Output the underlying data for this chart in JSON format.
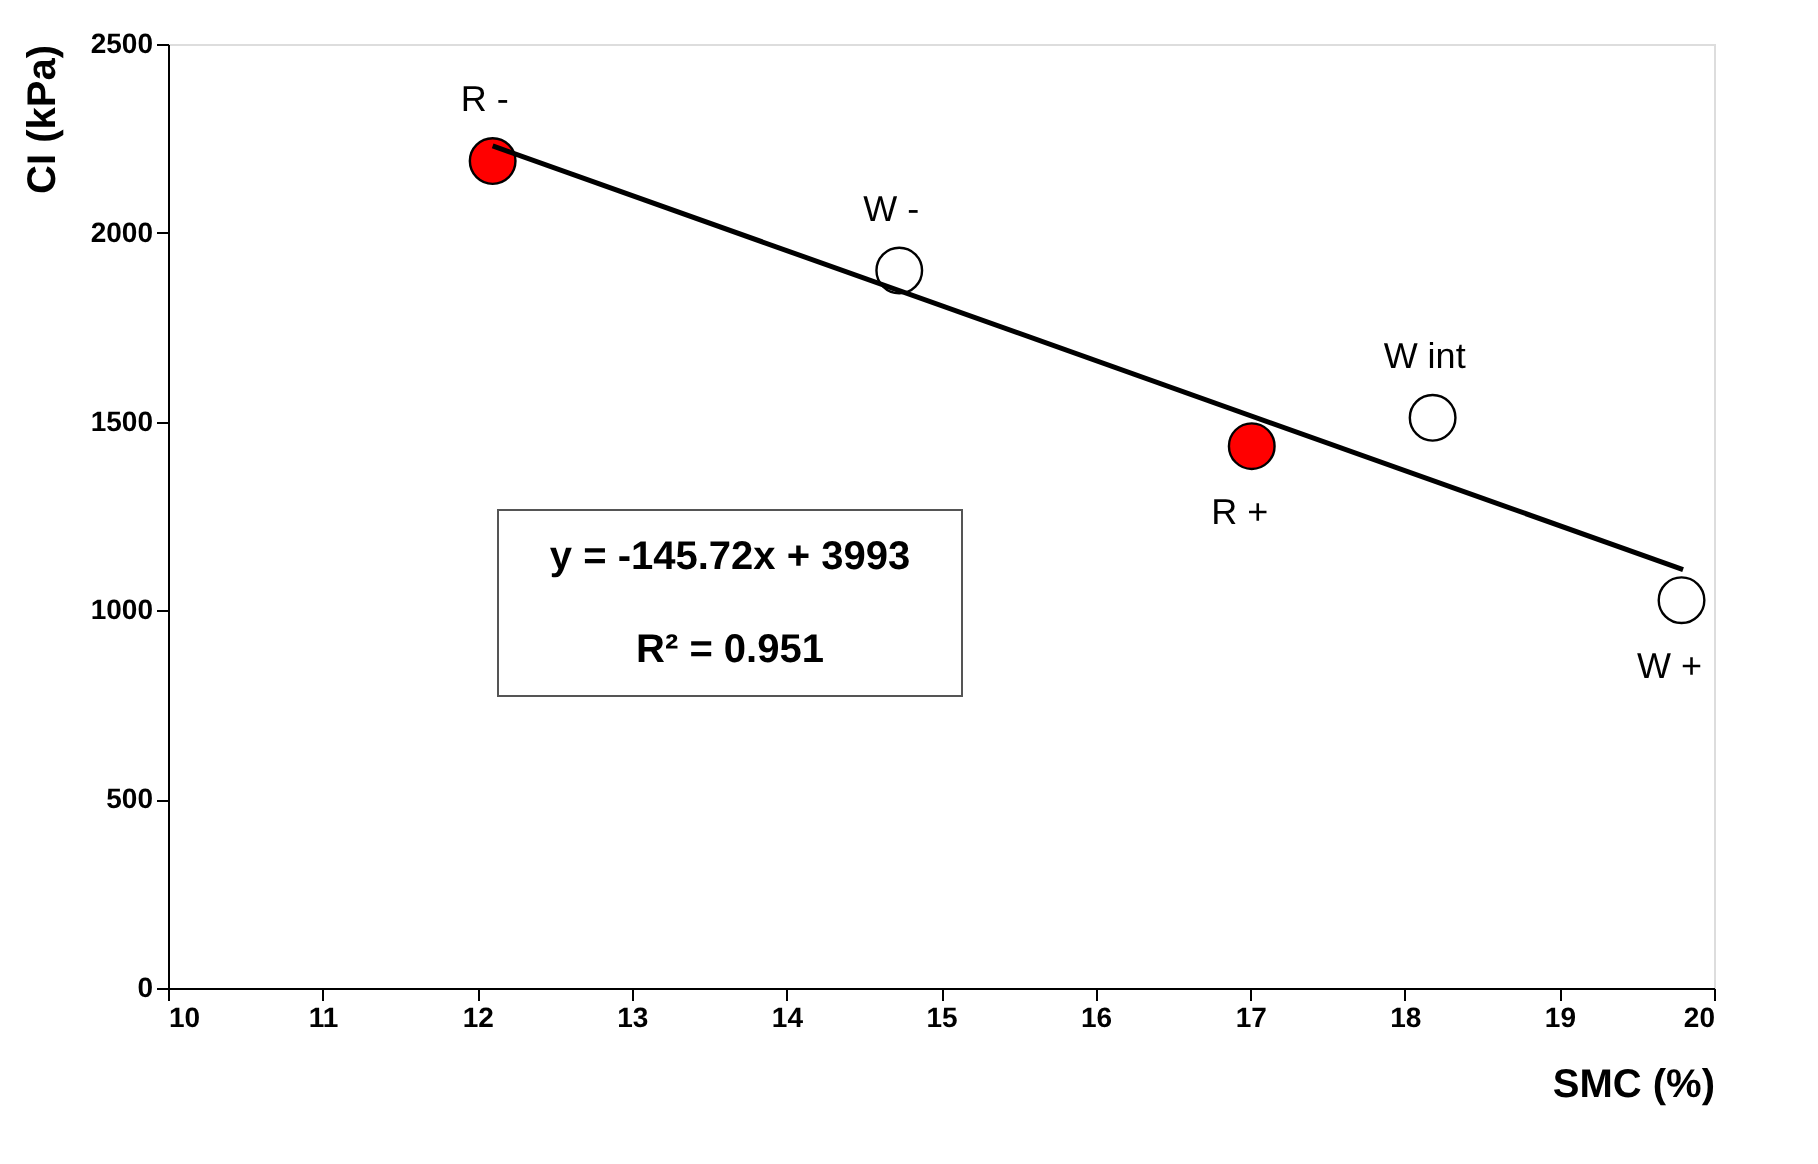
{
  "chart_data": {
    "type": "scatter",
    "xlabel": "SMC (%)",
    "ylabel": "CI (kPa)",
    "xlim": [
      10,
      20
    ],
    "xticks": [
      10,
      11,
      12,
      13,
      14,
      15,
      16,
      17,
      18,
      19,
      20
    ],
    "ylim": [
      0,
      2500
    ],
    "yticks": [
      0,
      500,
      1000,
      1500,
      2000,
      2500
    ],
    "grid": false,
    "marker": "circle",
    "series": [
      {
        "color": "#ff0000",
        "x": [
          12.1,
          17.01
        ],
        "values": [
          2190,
          1435
        ],
        "value_labels": [
          "R -",
          "R +"
        ]
      },
      {
        "color": "#ffffff",
        "x": [
          14.73,
          18.18,
          19.79
        ],
        "values": [
          1900,
          1510,
          1027
        ],
        "value_labels": [
          "W -",
          "W int",
          "W +"
        ]
      },
      {
        "type": "line",
        "marker": "none",
        "color": "#000000",
        "x": [
          12.1,
          19.8
        ],
        "values": [
          2230,
          1108
        ]
      }
    ],
    "annotations": [
      "y = -145.72x + 3993",
      "R² = 0.951"
    ]
  }
}
